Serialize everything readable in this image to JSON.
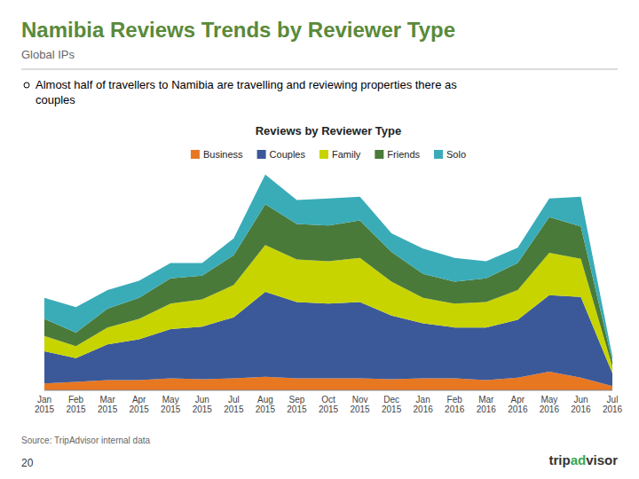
{
  "title": "Namibia Reviews Trends by Reviewer Type",
  "subtitle": "Global IPs",
  "annotations": [
    "Almost half of travellers to Namibia are travelling and reviewing properties there as\ncouples",
    "Source: TripAdvisor internal data",
    "20",
    "trip",
    "ad",
    "visor"
  ],
  "chart_data": {
    "type": "area",
    "stacked": true,
    "title": "Reviews by Reviewer Type",
    "categories": [
      "Jan\n2015",
      "Feb\n2015",
      "Mar\n2015",
      "Apr\n2015",
      "May\n2015",
      "Jun\n2015",
      "Jul\n2015",
      "Aug\n2015",
      "Sep\n2015",
      "Oct\n2015",
      "Nov\n2015",
      "Dec\n2015",
      "Jan\n2016",
      "Feb\n2016",
      "Mar\n2016",
      "Apr\n2016",
      "May\n2016",
      "Jun\n2016",
      "Jul\n2016"
    ],
    "series": [
      {
        "name": "Business",
        "color": "#E87722",
        "values": [
          8,
          10,
          12,
          12,
          14,
          13,
          14,
          16,
          14,
          14,
          14,
          13,
          14,
          14,
          12,
          15,
          22,
          15,
          5
        ]
      },
      {
        "name": "Couples",
        "color": "#3B5998",
        "values": [
          38,
          28,
          42,
          48,
          58,
          62,
          72,
          100,
          90,
          88,
          90,
          75,
          65,
          60,
          62,
          68,
          90,
          95,
          15
        ]
      },
      {
        "name": "Family",
        "color": "#C8D400",
        "values": [
          18,
          14,
          20,
          24,
          30,
          32,
          38,
          55,
          50,
          50,
          52,
          40,
          30,
          28,
          30,
          35,
          50,
          45,
          8
        ]
      },
      {
        "name": "Friends",
        "color": "#4A7A3A",
        "values": [
          20,
          16,
          22,
          25,
          30,
          28,
          35,
          48,
          42,
          42,
          44,
          35,
          28,
          26,
          28,
          32,
          42,
          38,
          6
        ]
      },
      {
        "name": "Solo",
        "color": "#3AACB8",
        "values": [
          25,
          30,
          22,
          20,
          18,
          15,
          20,
          35,
          28,
          32,
          28,
          22,
          30,
          28,
          20,
          18,
          22,
          35,
          6
        ]
      }
    ],
    "ylim": [
      0,
      259.08
    ],
    "tick_labels": "x",
    "legend": "top",
    "grid": false
  }
}
